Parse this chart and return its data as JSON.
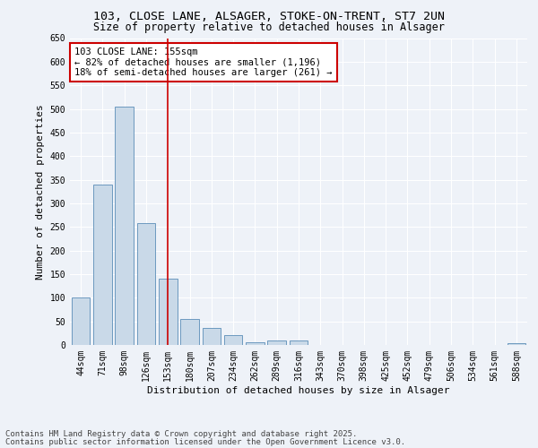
{
  "title_line1": "103, CLOSE LANE, ALSAGER, STOKE-ON-TRENT, ST7 2UN",
  "title_line2": "Size of property relative to detached houses in Alsager",
  "xlabel": "Distribution of detached houses by size in Alsager",
  "ylabel": "Number of detached properties",
  "categories": [
    "44sqm",
    "71sqm",
    "98sqm",
    "126sqm",
    "153sqm",
    "180sqm",
    "207sqm",
    "234sqm",
    "262sqm",
    "289sqm",
    "316sqm",
    "343sqm",
    "370sqm",
    "398sqm",
    "425sqm",
    "452sqm",
    "479sqm",
    "506sqm",
    "534sqm",
    "561sqm",
    "588sqm"
  ],
  "values": [
    100,
    340,
    505,
    258,
    140,
    55,
    37,
    21,
    6,
    10,
    10,
    0,
    0,
    0,
    0,
    0,
    0,
    0,
    0,
    0,
    3
  ],
  "bar_color": "#c9d9e8",
  "bar_edge_color": "#5b8db8",
  "vline_index": 4,
  "vline_color": "#cc0000",
  "annotation_text": "103 CLOSE LANE: 155sqm\n← 82% of detached houses are smaller (1,196)\n18% of semi-detached houses are larger (261) →",
  "annotation_box_color": "#cc0000",
  "ylim": [
    0,
    650
  ],
  "yticks": [
    0,
    50,
    100,
    150,
    200,
    250,
    300,
    350,
    400,
    450,
    500,
    550,
    600,
    650
  ],
  "footer_line1": "Contains HM Land Registry data © Crown copyright and database right 2025.",
  "footer_line2": "Contains public sector information licensed under the Open Government Licence v3.0.",
  "bg_color": "#eef2f8",
  "title_fontsize": 9.5,
  "subtitle_fontsize": 8.5,
  "axis_label_fontsize": 8,
  "tick_fontsize": 7,
  "annotation_fontsize": 7.5,
  "footer_fontsize": 6.5
}
